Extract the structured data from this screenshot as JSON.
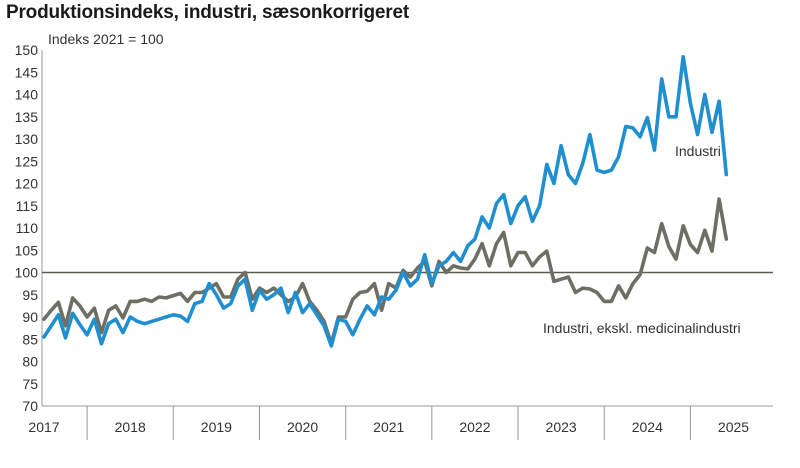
{
  "colors": {
    "industri": "#1f8fd0",
    "eksklusiv": "#6e6f64",
    "reference_line": "#5a5a50",
    "axis": "#999999",
    "text": "#333333"
  },
  "chart_data": {
    "type": "line",
    "title": "Produktionsindeks, industri, sæsonkorrigeret",
    "ylabel": "Indeks 2021 = 100",
    "xlabel": "",
    "ylim": [
      70,
      150
    ],
    "yticks": [
      70,
      75,
      80,
      85,
      90,
      95,
      100,
      105,
      110,
      115,
      120,
      125,
      130,
      135,
      140,
      145,
      150
    ],
    "xticks": [
      "2017",
      "2018",
      "2019",
      "2020",
      "2021",
      "2022",
      "2023",
      "2024",
      "2025"
    ],
    "start_month": "2016-07",
    "frequency": "monthly",
    "reference_line": 100,
    "grid": false,
    "legend": "direct labels",
    "series": [
      {
        "name": "Industri",
        "color": "#1f8fd0",
        "values": [
          85.5,
          88.0,
          90.5,
          85.3,
          90.8,
          88.3,
          86.0,
          89.5,
          84.0,
          88.5,
          89.5,
          86.5,
          90.0,
          89.0,
          88.5,
          89.0,
          89.5,
          90.0,
          90.5,
          90.2,
          89.0,
          93.0,
          93.5,
          97.5,
          95.0,
          92.0,
          93.0,
          97.0,
          98.5,
          91.5,
          96.0,
          94.0,
          95.0,
          96.5,
          91.0,
          95.5,
          91.0,
          93.0,
          90.5,
          88.0,
          83.5,
          89.5,
          89.0,
          86.0,
          89.5,
          92.5,
          90.5,
          94.5,
          94.0,
          96.0,
          100.0,
          97.0,
          98.5,
          104.0,
          97.5,
          101.5,
          102.5,
          104.5,
          102.5,
          106.0,
          107.5,
          112.5,
          110.0,
          115.5,
          117.5,
          111.0,
          115.0,
          117.0,
          111.5,
          115.0,
          124.3,
          120.0,
          128.5,
          122.0,
          120.0,
          124.5,
          131.0,
          123.0,
          122.5,
          123.0,
          126.0,
          132.8,
          132.5,
          130.5,
          134.8,
          127.5,
          143.5,
          135.0,
          135.0,
          148.5,
          138.0,
          131.0,
          140.0,
          131.5,
          138.5,
          122.0
        ]
      },
      {
        "name": "Industri, ekskl. medicinalindustri",
        "color": "#6e6f64",
        "values": [
          89.5,
          91.5,
          93.3,
          88.0,
          94.3,
          92.5,
          90.0,
          92.0,
          86.5,
          91.5,
          92.5,
          89.8,
          93.5,
          93.5,
          94.0,
          93.5,
          94.5,
          94.3,
          94.8,
          95.3,
          93.5,
          95.5,
          95.5,
          96.5,
          97.5,
          94.5,
          94.5,
          98.5,
          100.0,
          94.0,
          96.5,
          95.5,
          96.5,
          95.0,
          93.5,
          94.5,
          97.5,
          93.5,
          91.5,
          89.0,
          84.0,
          90.0,
          90.0,
          94.0,
          95.5,
          95.8,
          97.5,
          91.5,
          97.5,
          96.5,
          100.5,
          99.0,
          101.0,
          102.5,
          97.0,
          102.5,
          100.0,
          101.5,
          101.0,
          100.8,
          103.0,
          106.5,
          101.5,
          106.5,
          109.0,
          101.5,
          104.5,
          104.5,
          101.5,
          103.5,
          104.8,
          98.0,
          98.5,
          99.0,
          95.5,
          96.5,
          96.3,
          95.5,
          93.5,
          93.5,
          97.0,
          94.3,
          97.5,
          99.5,
          105.5,
          104.5,
          111.0,
          105.8,
          103.0,
          110.5,
          106.3,
          104.5,
          109.5,
          104.8,
          116.5,
          107.5
        ]
      }
    ],
    "annotations": [
      {
        "text": "Industri",
        "series": "Industri"
      },
      {
        "text": "Industri, ekskl. medicinalindustri",
        "series": "Industri, ekskl. medicinalindustri"
      }
    ]
  }
}
